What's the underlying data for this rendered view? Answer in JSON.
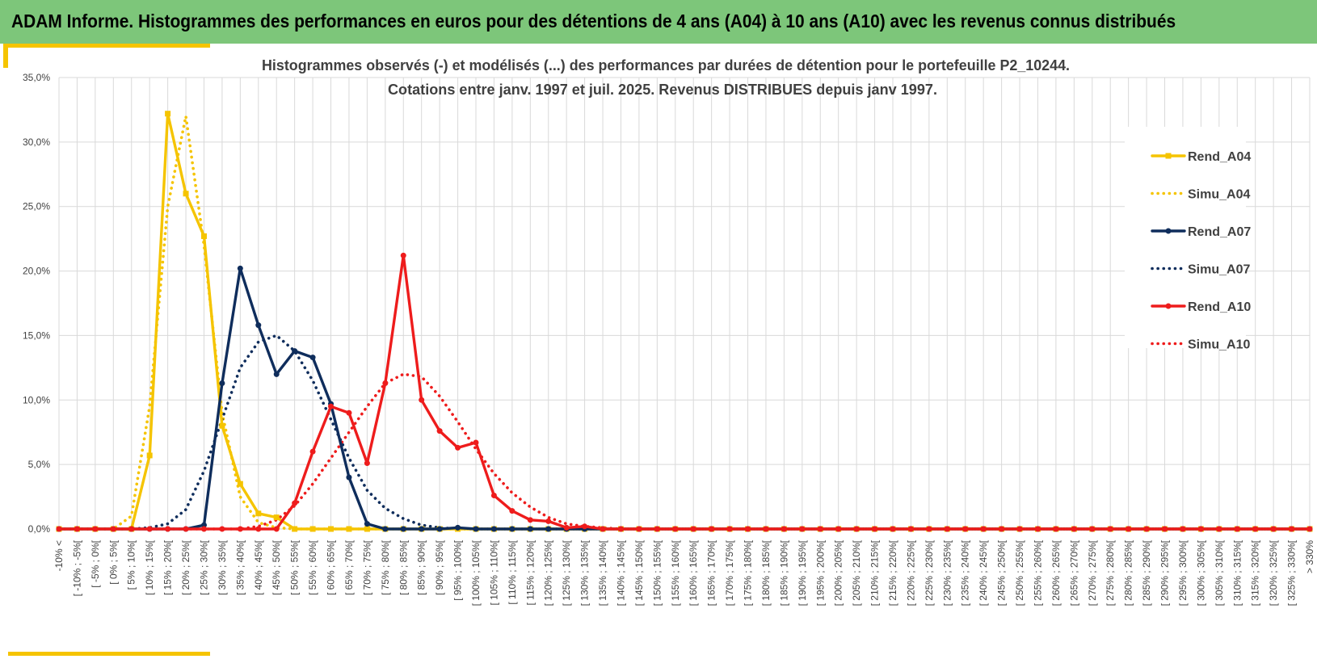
{
  "header": {
    "title": "ADAM Informe. Histogrammes des performances en euros pour des détentions de 4 ans (A04) à 10 ans (A10) avec les revenus connus distribués"
  },
  "colors": {
    "header_bg": "#7dc67a",
    "accent": "#f5c400",
    "a04": "#f5c400",
    "a07": "#0f2d5c",
    "a10": "#ee1c1c",
    "grid": "#d9d9d9"
  },
  "chart_data": {
    "type": "line",
    "title": "Histogrammes observés (-) et modélisés (...) des performances par durées de détention pour le portefeuille P2_10244.",
    "subtitle": "Cotations entre janv. 1997 et juil. 2025. Revenus DISTRIBUES depuis janv 1997.",
    "xlabel": "",
    "ylabel": "",
    "ylim": [
      0,
      35
    ],
    "y_ticks": [
      "0,0%",
      "5,0%",
      "10,0%",
      "15,0%",
      "20,0%",
      "25,0%",
      "30,0%",
      "35,0%"
    ],
    "grid": true,
    "legend_position": "right",
    "categories": [
      "-10% <",
      "[ -10% ; -5%[",
      "[ -5% ; 0%[",
      "[ 0% ; 5%[",
      "[ 5% ; 10%[",
      "[ 10% ; 15%[",
      "[ 15% ; 20%[",
      "[ 20% ; 25%[",
      "[ 25% ; 30%[",
      "[ 30% ; 35%[",
      "[ 35% ; 40%[",
      "[ 40% ; 45%[",
      "[ 45% ; 50%[",
      "[ 50% ; 55%[",
      "[ 55% ; 60%[",
      "[ 60% ; 65%[",
      "[ 65% ; 70%[",
      "[ 70% ; 75%[",
      "[ 75% ; 80%[",
      "[ 80% ; 85%[",
      "[ 85% ; 90%[",
      "[ 90% ; 95%[",
      "[ 95% ; 100%[",
      "[ 100% ; 105%[",
      "[ 105% ; 110%[",
      "[ 110% ; 115%[",
      "[ 115% ; 120%[",
      "[ 120% ; 125%[",
      "[ 125% ; 130%[",
      "[ 130% ; 135%[",
      "[ 135% ; 140%[",
      "[ 140% ; 145%[",
      "[ 145% ; 150%[",
      "[ 150% ; 155%[",
      "[ 155% ; 160%[",
      "[ 160% ; 165%[",
      "[ 165% ; 170%[",
      "[ 170% ; 175%[",
      "[ 175% ; 180%[",
      "[ 180% ; 185%[",
      "[ 185% ; 190%[",
      "[ 190% ; 195%[",
      "[ 195% ; 200%[",
      "[ 200% ; 205%[",
      "[ 205% ; 210%[",
      "[ 210% ; 215%[",
      "[ 215% ; 220%[",
      "[ 220% ; 225%[",
      "[ 225% ; 230%[",
      "[ 230% ; 235%[",
      "[ 235% ; 240%[",
      "[ 240% ; 245%[",
      "[ 245% ; 250%[",
      "[ 250% ; 255%[",
      "[ 255% ; 260%[",
      "[ 260% ; 265%[",
      "[ 265% ; 270%[",
      "[ 270% ; 275%[",
      "[ 275% ; 280%[",
      "[ 280% ; 285%[",
      "[ 285% ; 290%[",
      "[ 290% ; 295%[",
      "[ 295% ; 300%[",
      "[ 300% ; 305%[",
      "[ 305% ; 310%[",
      "[ 310% ; 315%[",
      "[ 315% ; 320%[",
      "[ 320% ; 325%[",
      "[ 325% ; 330%[",
      "> 330%"
    ],
    "series": [
      {
        "name": "Rend_A04",
        "style": "solid",
        "color": "#f5c400",
        "marker": "square",
        "values": [
          0,
          0,
          0,
          0,
          0,
          5.7,
          32.2,
          26.0,
          22.7,
          8.0,
          3.5,
          1.2,
          0.9,
          0,
          0,
          0,
          0,
          0,
          0,
          0,
          0,
          0,
          0,
          0,
          0,
          0,
          0,
          0,
          0,
          0,
          0,
          0,
          0,
          0,
          0,
          0,
          0,
          0,
          0,
          0,
          0,
          0,
          0,
          0,
          0,
          0,
          0,
          0,
          0,
          0,
          0,
          0,
          0,
          0,
          0,
          0,
          0,
          0,
          0,
          0,
          0,
          0,
          0,
          0,
          0,
          0,
          0,
          0,
          0,
          0
        ]
      },
      {
        "name": "Simu_A04",
        "style": "dotted",
        "color": "#f5c400",
        "values": [
          0,
          0,
          0,
          0,
          1.0,
          9.5,
          25.0,
          32.0,
          22.0,
          9.0,
          2.5,
          0.5,
          0.1,
          0,
          0,
          0,
          0,
          0,
          0,
          0,
          0,
          0,
          0,
          0,
          0,
          0,
          0,
          0,
          0,
          0,
          0,
          0,
          0,
          0,
          0,
          0,
          0,
          0,
          0,
          0,
          0,
          0,
          0,
          0,
          0,
          0,
          0,
          0,
          0,
          0,
          0,
          0,
          0,
          0,
          0,
          0,
          0,
          0,
          0,
          0,
          0,
          0,
          0,
          0,
          0,
          0,
          0,
          0,
          0,
          0
        ]
      },
      {
        "name": "Rend_A07",
        "style": "solid",
        "color": "#0f2d5c",
        "marker": "circle",
        "values": [
          0,
          0,
          0,
          0,
          0,
          0,
          0,
          0,
          0.3,
          11.3,
          20.2,
          15.8,
          12.0,
          13.8,
          13.3,
          9.7,
          4.0,
          0.4,
          0,
          0,
          0,
          0,
          0.1,
          0,
          0,
          0,
          0,
          0,
          0,
          0,
          0,
          0,
          0,
          0,
          0,
          0,
          0,
          0,
          0,
          0,
          0,
          0,
          0,
          0,
          0,
          0,
          0,
          0,
          0,
          0,
          0,
          0,
          0,
          0,
          0,
          0,
          0,
          0,
          0,
          0,
          0,
          0,
          0,
          0,
          0,
          0,
          0,
          0,
          0,
          0
        ]
      },
      {
        "name": "Simu_A07",
        "style": "dotted",
        "color": "#0f2d5c",
        "values": [
          0,
          0,
          0,
          0,
          0,
          0.1,
          0.4,
          1.5,
          4.5,
          8.5,
          12.5,
          14.5,
          15.0,
          13.8,
          11.5,
          8.5,
          5.5,
          3.0,
          1.6,
          0.8,
          0.3,
          0.1,
          0,
          0,
          0,
          0,
          0,
          0,
          0,
          0,
          0,
          0,
          0,
          0,
          0,
          0,
          0,
          0,
          0,
          0,
          0,
          0,
          0,
          0,
          0,
          0,
          0,
          0,
          0,
          0,
          0,
          0,
          0,
          0,
          0,
          0,
          0,
          0,
          0,
          0,
          0,
          0,
          0,
          0,
          0,
          0,
          0,
          0,
          0,
          0
        ]
      },
      {
        "name": "Rend_A10",
        "style": "solid",
        "color": "#ee1c1c",
        "marker": "circle",
        "values": [
          0,
          0,
          0,
          0,
          0,
          0,
          0,
          0,
          0,
          0,
          0,
          0,
          0,
          2.0,
          6.0,
          9.5,
          9.0,
          5.1,
          11.3,
          21.2,
          10.0,
          7.6,
          6.3,
          6.7,
          2.6,
          1.4,
          0.7,
          0.6,
          0.1,
          0.2,
          0,
          0,
          0,
          0,
          0,
          0,
          0,
          0,
          0,
          0,
          0,
          0,
          0,
          0,
          0,
          0,
          0,
          0,
          0,
          0,
          0,
          0,
          0,
          0,
          0,
          0,
          0,
          0,
          0,
          0,
          0,
          0,
          0,
          0,
          0,
          0,
          0,
          0,
          0,
          0
        ]
      },
      {
        "name": "Simu_A10",
        "style": "dotted",
        "color": "#ee1c1c",
        "values": [
          0,
          0,
          0,
          0,
          0,
          0,
          0,
          0,
          0,
          0,
          0,
          0.2,
          0.7,
          1.8,
          3.5,
          5.5,
          7.5,
          9.5,
          11.3,
          12.0,
          11.8,
          10.3,
          8.3,
          6.2,
          4.3,
          2.8,
          1.7,
          0.9,
          0.4,
          0.2,
          0.1,
          0,
          0,
          0,
          0,
          0,
          0,
          0,
          0,
          0,
          0,
          0,
          0,
          0,
          0,
          0,
          0,
          0,
          0,
          0,
          0,
          0,
          0,
          0,
          0,
          0,
          0,
          0,
          0,
          0,
          0,
          0,
          0,
          0,
          0,
          0,
          0,
          0,
          0,
          0
        ]
      }
    ]
  }
}
